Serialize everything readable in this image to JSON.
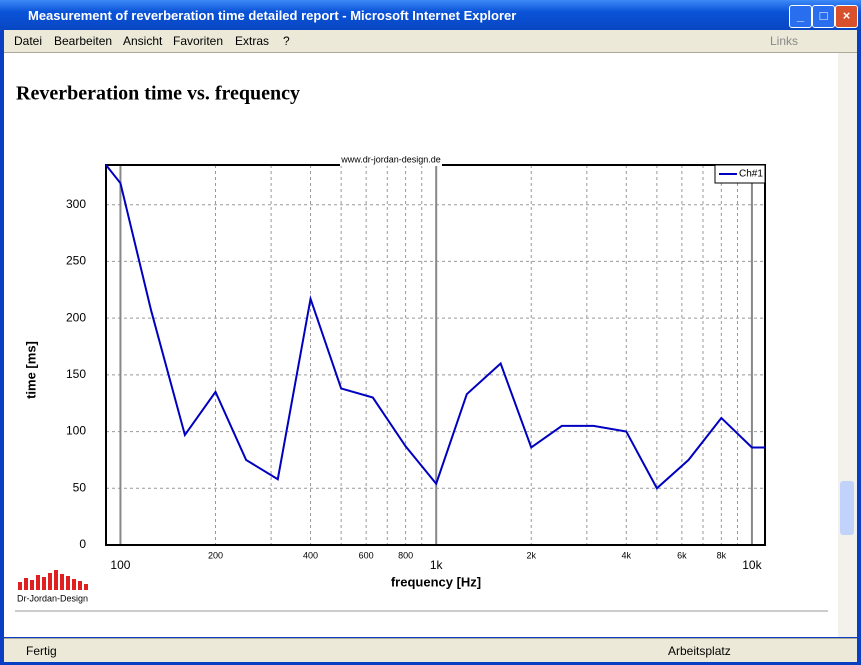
{
  "window": {
    "title": "Measurement of reverberation time detailed report - Microsoft Internet Explorer",
    "menu": [
      "Datei",
      "Bearbeiten",
      "Ansicht",
      "Favoriten",
      "Extras",
      "?"
    ],
    "links": "Links",
    "status": "Fertig",
    "zone": "Arbeitsplatz"
  },
  "page": {
    "heading": "Reverberation time vs. frequency",
    "logo": "Dr-Jordan-Design"
  },
  "chart_data": {
    "type": "line",
    "watermark": "www.dr-jordan-design.de",
    "x_label": "frequency [Hz]",
    "y_label": "time [ms]",
    "xscale": "log",
    "x": [
      90,
      100,
      125,
      160,
      200,
      250,
      315,
      400,
      500,
      630,
      800,
      1000,
      1250,
      1600,
      2000,
      2500,
      3150,
      4000,
      5000,
      6300,
      8000,
      10000,
      11000
    ],
    "series": [
      {
        "name": "Ch#1",
        "color": "#0000c0",
        "values": [
          335,
          319,
          207,
          97,
          135,
          75,
          58,
          217,
          138,
          130,
          87,
          54,
          133,
          160,
          86,
          105,
          105,
          100,
          50,
          75,
          112,
          86,
          86
        ]
      }
    ],
    "xlim": [
      90,
      11000
    ],
    "ylim": [
      0,
      335
    ],
    "xticks": [
      100,
      200,
      400,
      600,
      800,
      {
        "value": 1000,
        "label": "1k"
      },
      {
        "value": 2000,
        "label": "2k"
      },
      {
        "value": 4000,
        "label": "4k"
      },
      {
        "value": 6000,
        "label": "6k"
      },
      {
        "value": 8000,
        "label": "8k"
      },
      {
        "value": 10000,
        "label": "10k"
      }
    ],
    "xminor": [
      300,
      500,
      700,
      900,
      3000,
      5000,
      7000,
      9000
    ],
    "xmajor": [
      100,
      1000,
      10000
    ],
    "yticks": [
      0,
      50,
      100,
      150,
      200,
      250,
      300
    ],
    "grid": true,
    "legend": "top-right"
  }
}
